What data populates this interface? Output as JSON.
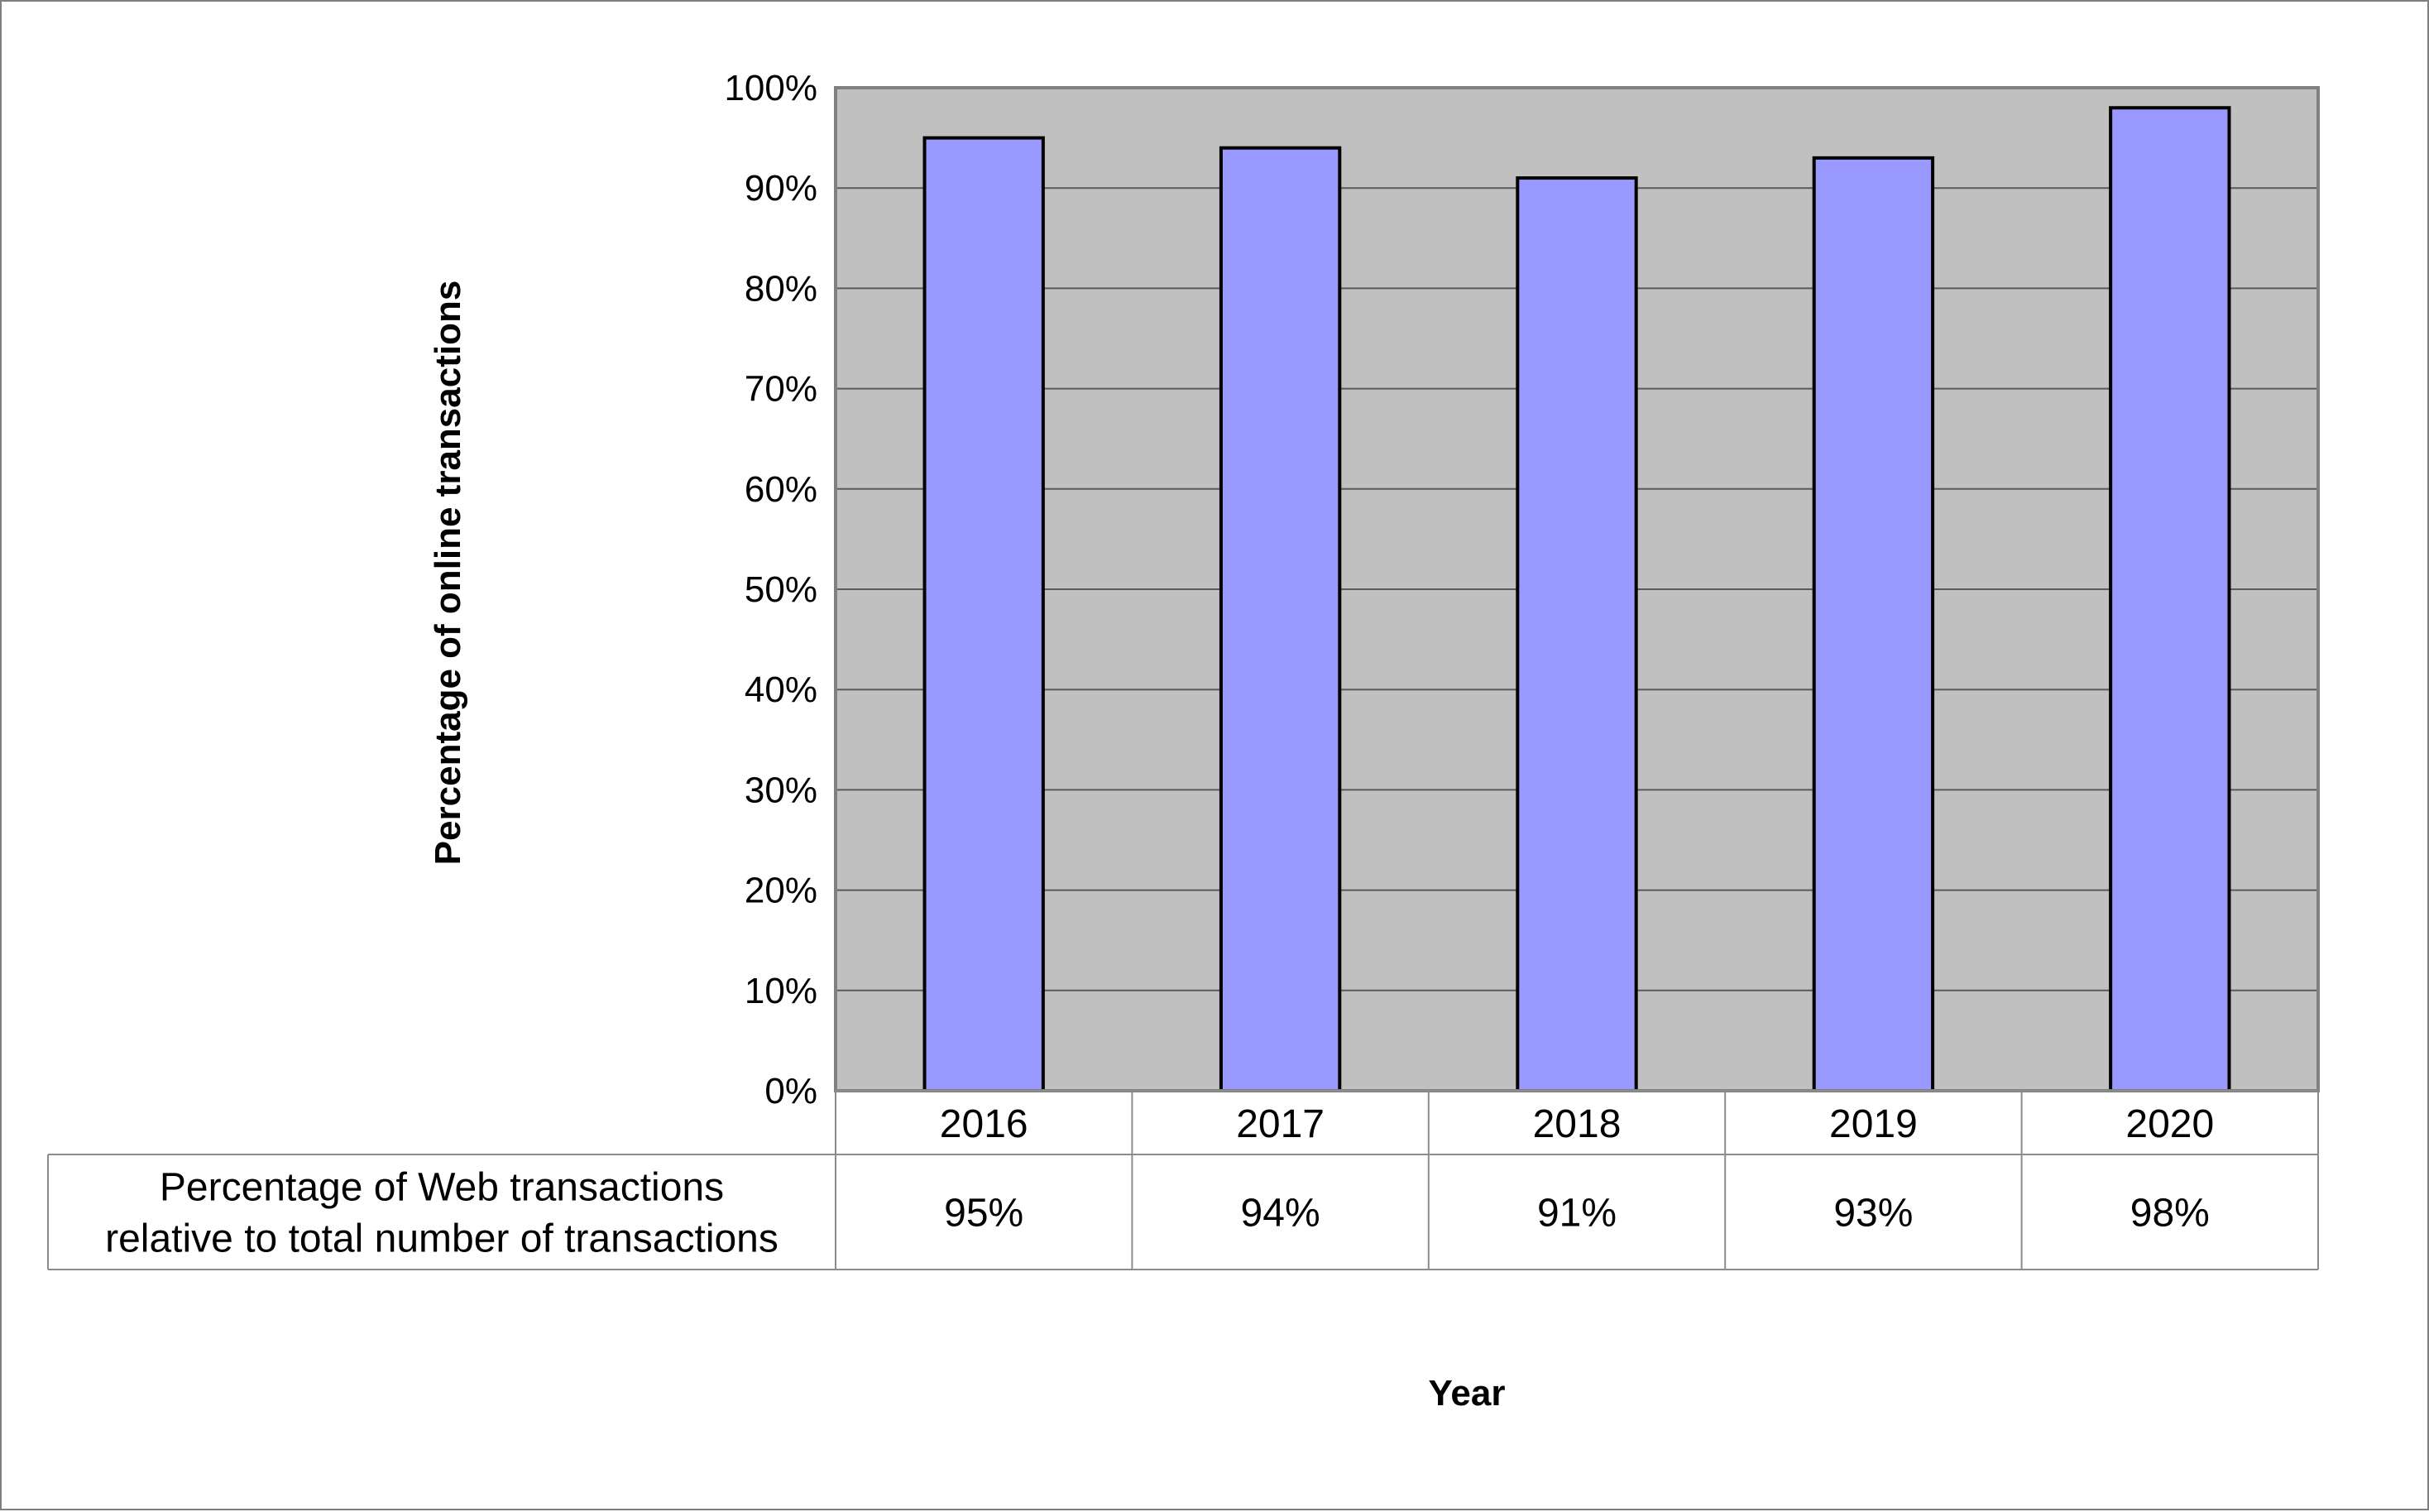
{
  "chart_data": {
    "type": "bar",
    "categories": [
      "2016",
      "2017",
      "2018",
      "2019",
      "2020"
    ],
    "values": [
      95,
      94,
      91,
      93,
      98
    ],
    "value_unit": "%",
    "ylabel": "Percentage of online transactions",
    "xlabel": "Year",
    "ylim": [
      0,
      100
    ],
    "ytick_labels": [
      "0%",
      "10%",
      "20%",
      "30%",
      "40%",
      "50%",
      "60%",
      "70%",
      "80%",
      "90%",
      "100%"
    ],
    "grid": true,
    "legend": "none",
    "data_table": {
      "row_label_lines": [
        "Percentage of Web transactions",
        "relative to total number of transactions"
      ],
      "cells": [
        "95%",
        "94%",
        "91%",
        "93%",
        "98%"
      ]
    },
    "colors": {
      "bar_fill": "#9999ff",
      "bar_edge": "#000000",
      "plot_background": "#c0c0c0",
      "gridline": "#5a5a5a",
      "table_border": "#8c8c8c"
    }
  }
}
